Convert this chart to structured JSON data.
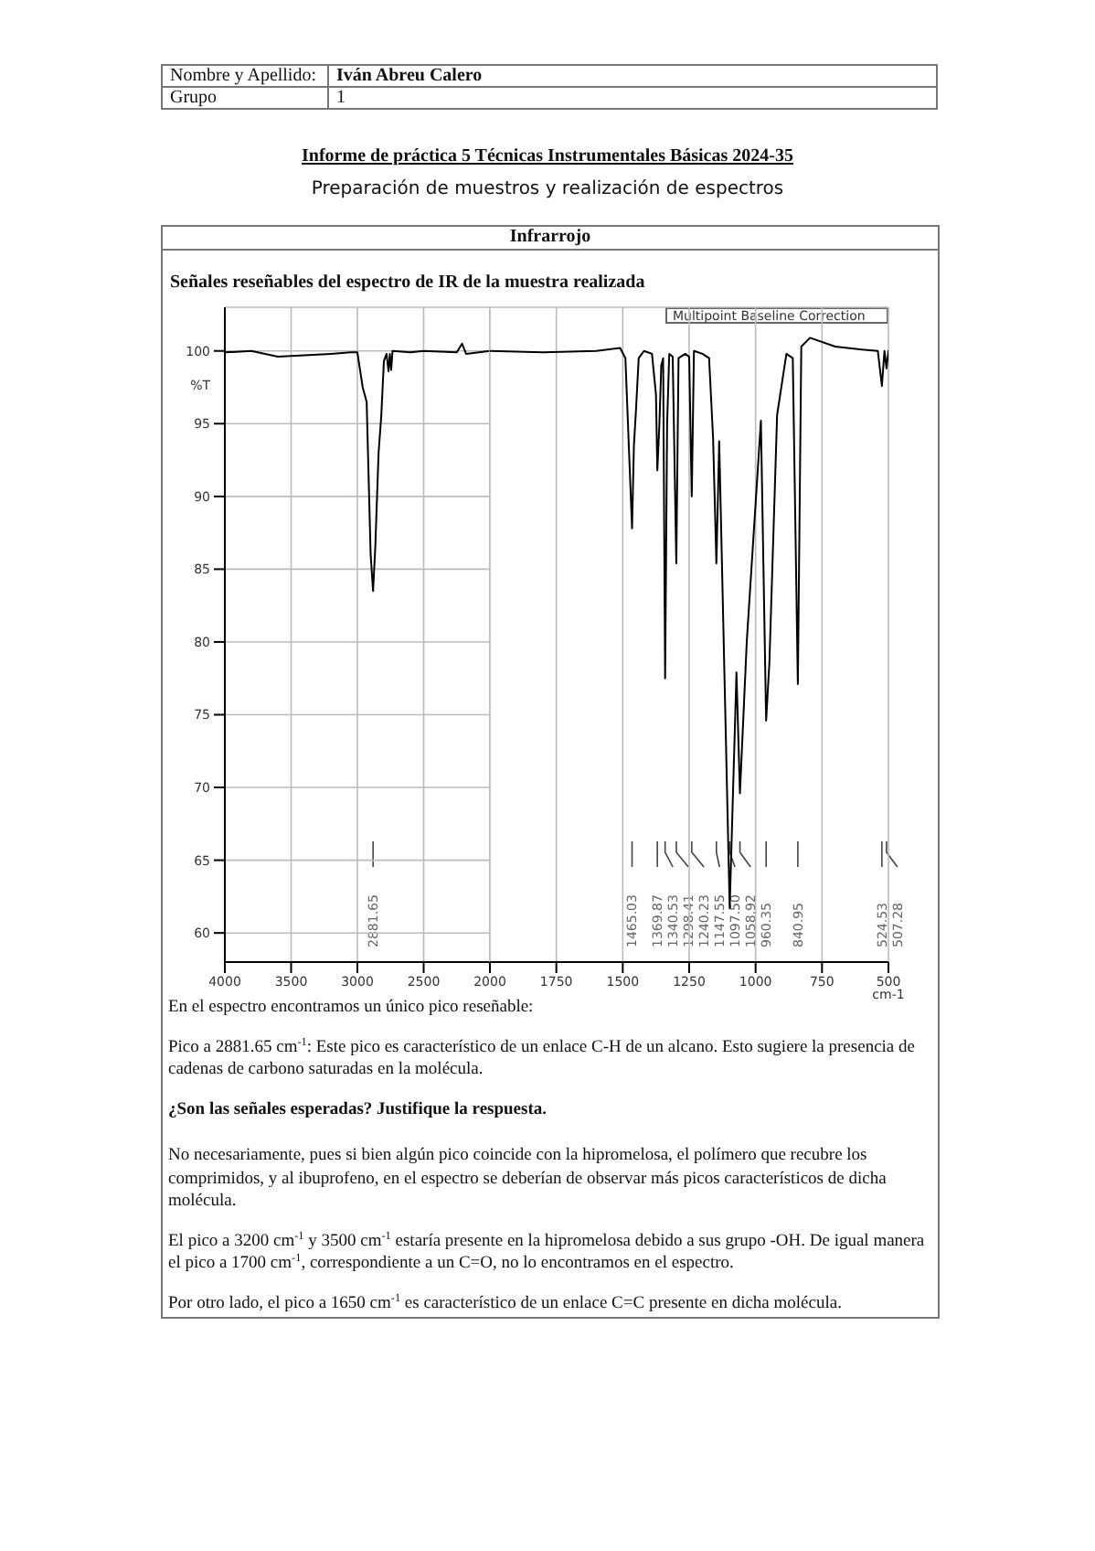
{
  "chart_data": [
    {
      "type": "line",
      "title": "Informe de práctica 5 Técnicas Instrumentales Básicas 2024-35",
      "subtitle": "Preparación de muestros y realización de espectros",
      "ylabel": "%T",
      "x": [
        4000,
        3800,
        3600,
        3400,
        3200,
        3050,
        3000,
        2960,
        2930,
        2900,
        2881.65,
        2865,
        2840,
        2820,
        2800,
        2780,
        2765,
        2755,
        2745,
        2735,
        2600,
        2500,
        2250,
        2210,
        2180,
        2000
      ],
      "series": [
        {
          "color": "#000000",
          "values": [
            99.9,
            100,
            99.6,
            99.7,
            99.8,
            99.9,
            99.9,
            97.5,
            96.5,
            86,
            83.5,
            86.5,
            93,
            95.5,
            99.3,
            99.8,
            98.6,
            99.8,
            98.7,
            100,
            99.9,
            100,
            99.9,
            100.5,
            99.8,
            100
          ]
        }
      ],
      "xlim": [
        4000,
        2000
      ],
      "xticks": [
        4000,
        3500,
        3000,
        2500
      ],
      "ylim": [
        58,
        103
      ],
      "yticks": [
        60,
        65,
        70,
        75,
        80,
        85,
        90,
        95,
        100
      ],
      "grid": true,
      "annotations": [
        "Nombre y Apellido:",
        "Iván Abreu Calero",
        "Grupo",
        "1",
        "Infrarrojo",
        "Señales reseñables del espectro de IR de la muestra realizada",
        "2881.65",
        "En el espectro encontramos un único pico reseñable:",
        "Pico a 2881.65 cm$^{-1}$: Este pico es característico de un enlace C-H de un alcano. Esto sugiere la presencia de cadenas de carbono saturadas en la molécula.",
        "¿Son las señales esperadas? Justifique la respuesta.",
        "No necesariamente, pues si bien algún pico coincide con la hipromelosa, el polímero que recubre los comprimidos, y al ibuprofeno, en el espectro se deberían de observar más picos característicos de dicha molécula.",
        "El pico a 3200 cm$^{-1}$ y 3500 cm$^{-1}$ estaría presente en la hipromelosa debido a sus grupo -OH.  De igual manera el pico a 1700 cm$^{-1}$, correspondiente a un C=O, no lo encontramos en el espectro.",
        "Por otro lado, el pico a 1650 cm$^{-1}$ es característico de un enlace C=C presente en dicha molécula."
      ]
    },
    {
      "type": "line",
      "xlabel": "cm-1",
      "x": [
        2000,
        1800,
        1600,
        1510,
        1490,
        1465.03,
        1458,
        1450,
        1440,
        1420,
        1390,
        1375,
        1369.87,
        1362,
        1355,
        1348,
        1340.53,
        1333,
        1325,
        1312,
        1298.41,
        1290,
        1265,
        1250,
        1240.23,
        1232,
        1200,
        1175,
        1160,
        1147.55,
        1137,
        1097.5,
        1072,
        1058.92,
        1033,
        980,
        960.35,
        948,
        919,
        884,
        860,
        840.95,
        828,
        795,
        700,
        600,
        540,
        524.53,
        515,
        507.28,
        500
      ],
      "series": [
        {
          "color": "#000000",
          "values": [
            100,
            99.9,
            100,
            100.2,
            99.5,
            87.8,
            93.5,
            96,
            99.5,
            100,
            99.8,
            97,
            91.8,
            95,
            99,
            99.5,
            77.5,
            95,
            99.8,
            99.6,
            85.4,
            99.5,
            99.8,
            99.6,
            90,
            100,
            99.8,
            99.5,
            94,
            85.4,
            93.8,
            61.7,
            77.9,
            69.6,
            80.1,
            95.2,
            74.6,
            78.6,
            95.6,
            99.8,
            99.5,
            77.1,
            100.3,
            100.9,
            100.3,
            100.1,
            100,
            97.6,
            100,
            98.8,
            100
          ]
        }
      ],
      "xlim": [
        2000,
        500
      ],
      "xticks": [
        2000,
        1750,
        1500,
        1250,
        1000,
        750,
        500
      ],
      "ylim": [
        58,
        103
      ],
      "yticks": [
        60,
        65,
        70,
        75,
        80,
        85,
        90,
        95,
        100
      ],
      "grid": true,
      "tick_labels": "x",
      "annotations": [
        "Multipoint Baseline Correction",
        "1465.03",
        "1369.87",
        "1340.53",
        "1298.41",
        "1240.23",
        "1147.55",
        "1097.50",
        "1058.92",
        "960.35",
        "840.95",
        "524.53",
        "507.28"
      ]
    }
  ]
}
